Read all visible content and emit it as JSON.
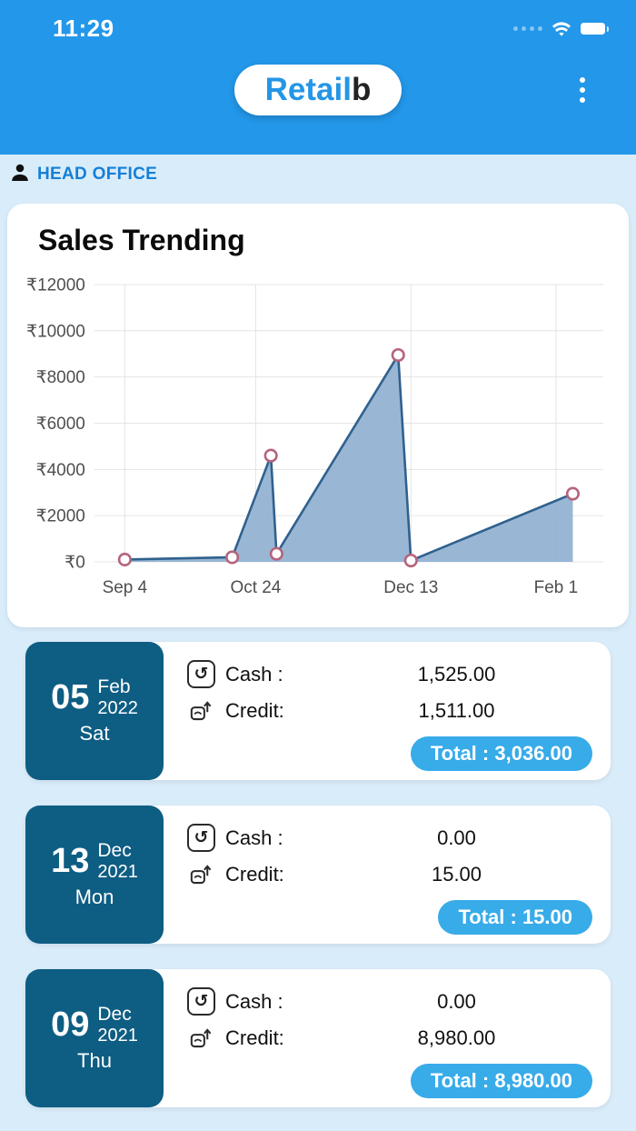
{
  "status_bar": {
    "time": "11:29"
  },
  "header": {
    "logo_primary": "Retail",
    "logo_suffix": "b"
  },
  "office": {
    "label": "HEAD OFFICE"
  },
  "sales_card": {
    "title": "Sales Trending"
  },
  "icons": {
    "cash_glyph": "↺",
    "kebab_glyph": ""
  },
  "labels": {
    "cash": "Cash :",
    "credit": "Credit:",
    "total": "Total :"
  },
  "colors": {
    "header_blue": "#2397e9",
    "page_bg": "#d9ecfa",
    "office_text": "#1480d8",
    "date_block": "#0e5d83",
    "total_pill": "#38abe9",
    "chart_line": "#30618e",
    "chart_fill": "#94b3d3",
    "chart_marker": "#b5647e"
  },
  "chart_data": {
    "type": "area",
    "title": "Sales Trending",
    "ylim": [
      0,
      12000
    ],
    "grid": true,
    "legend": "none",
    "y_ticks": [
      {
        "label": "₹12000",
        "value": 12000
      },
      {
        "label": "₹10000",
        "value": 10000
      },
      {
        "label": "₹8000",
        "value": 8000
      },
      {
        "label": "₹6000",
        "value": 6000
      },
      {
        "label": "₹4000",
        "value": 4000
      },
      {
        "label": "₹2000",
        "value": 2000
      },
      {
        "label": "₹0",
        "value": 0
      }
    ],
    "x_ticks": [
      {
        "label": "Sep 4",
        "pos": 0.06
      },
      {
        "label": "Oct 24",
        "pos": 0.317
      },
      {
        "label": "Dec 13",
        "pos": 0.622
      },
      {
        "label": "Feb 1",
        "pos": 0.907
      }
    ],
    "series_name": "Sales",
    "points": [
      {
        "pos": 0.06,
        "value": 100
      },
      {
        "pos": 0.271,
        "value": 200
      },
      {
        "pos": 0.347,
        "value": 4600
      },
      {
        "pos": 0.358,
        "value": 350
      },
      {
        "pos": 0.597,
        "value": 8950
      },
      {
        "pos": 0.622,
        "value": 60
      },
      {
        "pos": 0.94,
        "value": 2950
      }
    ],
    "line_color": "#30618e",
    "fill_color": "#94b3d3",
    "marker_stroke": "#b5647e"
  },
  "days": [
    {
      "date_day": "05",
      "date_month": "Feb",
      "date_year": "2022",
      "weekday": "Sat",
      "cash": "1,525.00",
      "credit": "1,511.00",
      "total": "3,036.00"
    },
    {
      "date_day": "13",
      "date_month": "Dec",
      "date_year": "2021",
      "weekday": "Mon",
      "cash": "0.00",
      "credit": "15.00",
      "total": "15.00"
    },
    {
      "date_day": "09",
      "date_month": "Dec",
      "date_year": "2021",
      "weekday": "Thu",
      "cash": "0.00",
      "credit": "8,980.00",
      "total": "8,980.00"
    }
  ]
}
